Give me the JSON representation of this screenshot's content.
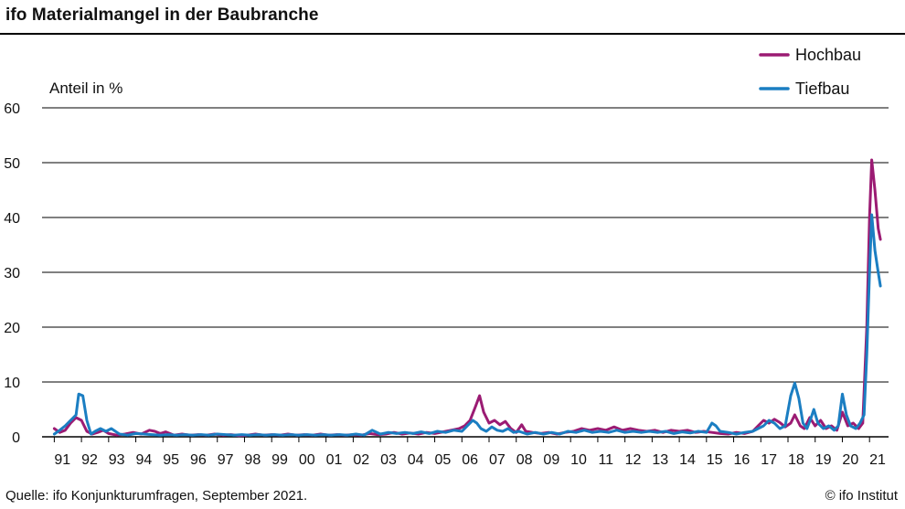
{
  "title": "ifo Materialmangel in der Baubranche",
  "source": "Quelle: ifo Konjunkturumfragen, September 2021.",
  "copyright": "© ifo Institut",
  "chart_data": {
    "type": "line",
    "ylabel": "Anteil in %",
    "ylim": [
      0,
      60
    ],
    "yticks": [
      0,
      10,
      20,
      30,
      40,
      50,
      60
    ],
    "grid": true,
    "legend_position": "top-right",
    "x_tick_labels": [
      "91",
      "92",
      "93",
      "94",
      "95",
      "96",
      "97",
      "98",
      "99",
      "00",
      "01",
      "02",
      "03",
      "04",
      "05",
      "06",
      "07",
      "08",
      "09",
      "10",
      "11",
      "12",
      "13",
      "14",
      "15",
      "16",
      "17",
      "18",
      "19",
      "20",
      "21"
    ],
    "x_unit": "year (fractional)",
    "series": [
      {
        "name": "Hochbau",
        "color": "#9b1b73",
        "points": [
          [
            1991.0,
            1.5
          ],
          [
            1991.2,
            0.8
          ],
          [
            1991.4,
            1.2
          ],
          [
            1991.6,
            2.5
          ],
          [
            1991.8,
            3.5
          ],
          [
            1992.0,
            3.0
          ],
          [
            1992.2,
            1.0
          ],
          [
            1992.4,
            0.5
          ],
          [
            1992.6,
            0.8
          ],
          [
            1992.8,
            1.2
          ],
          [
            1993.0,
            0.6
          ],
          [
            1993.3,
            0.3
          ],
          [
            1993.6,
            0.5
          ],
          [
            1993.9,
            0.8
          ],
          [
            1994.2,
            0.5
          ],
          [
            1994.5,
            1.2
          ],
          [
            1994.7,
            1.0
          ],
          [
            1994.9,
            0.6
          ],
          [
            1995.1,
            0.9
          ],
          [
            1995.4,
            0.3
          ],
          [
            1995.7,
            0.5
          ],
          [
            1996.0,
            0.3
          ],
          [
            1996.3,
            0.4
          ],
          [
            1996.6,
            0.3
          ],
          [
            1996.9,
            0.5
          ],
          [
            1997.2,
            0.3
          ],
          [
            1997.5,
            0.4
          ],
          [
            1997.8,
            0.2
          ],
          [
            1998.1,
            0.3
          ],
          [
            1998.4,
            0.5
          ],
          [
            1998.7,
            0.3
          ],
          [
            1999.0,
            0.4
          ],
          [
            1999.3,
            0.3
          ],
          [
            1999.6,
            0.5
          ],
          [
            1999.9,
            0.3
          ],
          [
            2000.2,
            0.4
          ],
          [
            2000.5,
            0.3
          ],
          [
            2000.8,
            0.5
          ],
          [
            2001.1,
            0.3
          ],
          [
            2001.4,
            0.4
          ],
          [
            2001.7,
            0.3
          ],
          [
            2002.0,
            0.4
          ],
          [
            2002.3,
            0.3
          ],
          [
            2002.6,
            0.6
          ],
          [
            2002.9,
            0.4
          ],
          [
            2003.2,
            0.5
          ],
          [
            2003.5,
            0.8
          ],
          [
            2003.8,
            0.5
          ],
          [
            2004.1,
            0.7
          ],
          [
            2004.4,
            0.5
          ],
          [
            2004.7,
            0.8
          ],
          [
            2005.0,
            0.6
          ],
          [
            2005.3,
            0.9
          ],
          [
            2005.6,
            1.2
          ],
          [
            2005.9,
            1.5
          ],
          [
            2006.1,
            2.0
          ],
          [
            2006.3,
            3.0
          ],
          [
            2006.5,
            5.5
          ],
          [
            2006.65,
            7.5
          ],
          [
            2006.8,
            4.5
          ],
          [
            2007.0,
            2.5
          ],
          [
            2007.2,
            3.0
          ],
          [
            2007.4,
            2.2
          ],
          [
            2007.6,
            2.8
          ],
          [
            2007.8,
            1.5
          ],
          [
            2008.0,
            0.8
          ],
          [
            2008.2,
            2.2
          ],
          [
            2008.35,
            1.0
          ],
          [
            2008.6,
            0.8
          ],
          [
            2008.9,
            0.6
          ],
          [
            2009.2,
            0.8
          ],
          [
            2009.5,
            0.5
          ],
          [
            2009.8,
            0.8
          ],
          [
            2010.1,
            1.0
          ],
          [
            2010.4,
            1.5
          ],
          [
            2010.7,
            1.2
          ],
          [
            2011.0,
            1.5
          ],
          [
            2011.3,
            1.2
          ],
          [
            2011.6,
            1.8
          ],
          [
            2011.9,
            1.2
          ],
          [
            2012.2,
            1.5
          ],
          [
            2012.5,
            1.2
          ],
          [
            2012.8,
            1.0
          ],
          [
            2013.1,
            1.2
          ],
          [
            2013.4,
            0.8
          ],
          [
            2013.7,
            1.2
          ],
          [
            2014.0,
            1.0
          ],
          [
            2014.3,
            1.2
          ],
          [
            2014.6,
            0.8
          ],
          [
            2014.9,
            1.0
          ],
          [
            2015.2,
            0.8
          ],
          [
            2015.5,
            0.6
          ],
          [
            2015.8,
            0.5
          ],
          [
            2016.1,
            0.8
          ],
          [
            2016.4,
            0.6
          ],
          [
            2016.7,
            1.0
          ],
          [
            2016.9,
            2.0
          ],
          [
            2017.1,
            3.0
          ],
          [
            2017.3,
            2.5
          ],
          [
            2017.5,
            3.2
          ],
          [
            2017.7,
            2.6
          ],
          [
            2017.9,
            1.8
          ],
          [
            2018.1,
            2.5
          ],
          [
            2018.25,
            4.0
          ],
          [
            2018.45,
            2.0
          ],
          [
            2018.6,
            1.5
          ],
          [
            2018.8,
            3.5
          ],
          [
            2019.0,
            2.0
          ],
          [
            2019.2,
            3.0
          ],
          [
            2019.4,
            1.5
          ],
          [
            2019.6,
            2.0
          ],
          [
            2019.8,
            1.2
          ],
          [
            2020.0,
            4.5
          ],
          [
            2020.2,
            2.0
          ],
          [
            2020.4,
            2.5
          ],
          [
            2020.6,
            1.5
          ],
          [
            2020.75,
            2.5
          ],
          [
            2020.9,
            20.0
          ],
          [
            2021.0,
            40.0
          ],
          [
            2021.08,
            50.5
          ],
          [
            2021.2,
            45.0
          ],
          [
            2021.32,
            38.0
          ],
          [
            2021.4,
            36.0
          ]
        ]
      },
      {
        "name": "Tiefbau",
        "color": "#1b7ec2",
        "points": [
          [
            1991.0,
            0.5
          ],
          [
            1991.2,
            1.2
          ],
          [
            1991.4,
            2.0
          ],
          [
            1991.6,
            3.0
          ],
          [
            1991.8,
            4.0
          ],
          [
            1991.9,
            7.8
          ],
          [
            1992.05,
            7.5
          ],
          [
            1992.2,
            3.0
          ],
          [
            1992.35,
            0.5
          ],
          [
            1992.5,
            1.0
          ],
          [
            1992.7,
            1.5
          ],
          [
            1992.9,
            1.0
          ],
          [
            1993.1,
            1.5
          ],
          [
            1993.4,
            0.5
          ],
          [
            1993.7,
            0.3
          ],
          [
            1994.0,
            0.6
          ],
          [
            1994.3,
            0.5
          ],
          [
            1994.6,
            0.4
          ],
          [
            1994.9,
            0.3
          ],
          [
            1995.2,
            0.4
          ],
          [
            1995.5,
            0.3
          ],
          [
            1995.8,
            0.4
          ],
          [
            1996.1,
            0.3
          ],
          [
            1996.4,
            0.4
          ],
          [
            1996.7,
            0.3
          ],
          [
            1997.0,
            0.5
          ],
          [
            1997.3,
            0.4
          ],
          [
            1997.6,
            0.3
          ],
          [
            1997.9,
            0.4
          ],
          [
            1998.2,
            0.3
          ],
          [
            1998.5,
            0.4
          ],
          [
            1998.8,
            0.3
          ],
          [
            1999.1,
            0.4
          ],
          [
            1999.4,
            0.3
          ],
          [
            1999.7,
            0.4
          ],
          [
            2000.0,
            0.3
          ],
          [
            2000.3,
            0.4
          ],
          [
            2000.6,
            0.3
          ],
          [
            2000.9,
            0.4
          ],
          [
            2001.2,
            0.3
          ],
          [
            2001.5,
            0.4
          ],
          [
            2001.8,
            0.3
          ],
          [
            2002.1,
            0.5
          ],
          [
            2002.4,
            0.3
          ],
          [
            2002.7,
            1.2
          ],
          [
            2003.0,
            0.5
          ],
          [
            2003.3,
            0.8
          ],
          [
            2003.6,
            0.6
          ],
          [
            2003.9,
            0.8
          ],
          [
            2004.2,
            0.6
          ],
          [
            2004.5,
            0.9
          ],
          [
            2004.8,
            0.6
          ],
          [
            2005.1,
            1.0
          ],
          [
            2005.4,
            0.8
          ],
          [
            2005.7,
            1.2
          ],
          [
            2006.0,
            1.0
          ],
          [
            2006.2,
            2.0
          ],
          [
            2006.4,
            3.0
          ],
          [
            2006.55,
            2.5
          ],
          [
            2006.7,
            1.5
          ],
          [
            2006.9,
            1.0
          ],
          [
            2007.1,
            1.8
          ],
          [
            2007.3,
            1.2
          ],
          [
            2007.5,
            1.0
          ],
          [
            2007.7,
            1.5
          ],
          [
            2007.9,
            0.8
          ],
          [
            2008.1,
            1.0
          ],
          [
            2008.4,
            0.5
          ],
          [
            2008.7,
            0.8
          ],
          [
            2009.0,
            0.5
          ],
          [
            2009.3,
            0.8
          ],
          [
            2009.6,
            0.5
          ],
          [
            2009.9,
            1.0
          ],
          [
            2010.2,
            0.8
          ],
          [
            2010.5,
            1.2
          ],
          [
            2010.8,
            0.8
          ],
          [
            2011.1,
            1.0
          ],
          [
            2011.4,
            0.8
          ],
          [
            2011.7,
            1.2
          ],
          [
            2012.0,
            0.8
          ],
          [
            2012.3,
            1.0
          ],
          [
            2012.6,
            0.8
          ],
          [
            2012.9,
            1.0
          ],
          [
            2013.2,
            0.8
          ],
          [
            2013.5,
            1.0
          ],
          [
            2013.8,
            0.6
          ],
          [
            2014.1,
            0.9
          ],
          [
            2014.4,
            0.7
          ],
          [
            2014.7,
            1.0
          ],
          [
            2015.0,
            0.8
          ],
          [
            2015.2,
            2.5
          ],
          [
            2015.35,
            2.0
          ],
          [
            2015.5,
            1.0
          ],
          [
            2015.8,
            0.8
          ],
          [
            2016.1,
            0.5
          ],
          [
            2016.4,
            0.8
          ],
          [
            2016.7,
            1.0
          ],
          [
            2016.9,
            1.5
          ],
          [
            2017.1,
            2.0
          ],
          [
            2017.3,
            3.0
          ],
          [
            2017.5,
            2.5
          ],
          [
            2017.7,
            1.5
          ],
          [
            2017.9,
            2.0
          ],
          [
            2018.1,
            7.5
          ],
          [
            2018.25,
            9.8
          ],
          [
            2018.4,
            7.0
          ],
          [
            2018.55,
            2.5
          ],
          [
            2018.7,
            1.5
          ],
          [
            2018.85,
            3.5
          ],
          [
            2018.95,
            5.0
          ],
          [
            2019.1,
            2.5
          ],
          [
            2019.3,
            1.5
          ],
          [
            2019.5,
            2.0
          ],
          [
            2019.7,
            1.2
          ],
          [
            2019.85,
            2.0
          ],
          [
            2020.0,
            7.8
          ],
          [
            2020.15,
            4.0
          ],
          [
            2020.3,
            2.0
          ],
          [
            2020.5,
            1.5
          ],
          [
            2020.65,
            2.5
          ],
          [
            2020.8,
            4.0
          ],
          [
            2020.9,
            15.0
          ],
          [
            2021.0,
            30.0
          ],
          [
            2021.08,
            40.5
          ],
          [
            2021.2,
            34.0
          ],
          [
            2021.32,
            30.0
          ],
          [
            2021.4,
            27.5
          ]
        ]
      }
    ]
  }
}
